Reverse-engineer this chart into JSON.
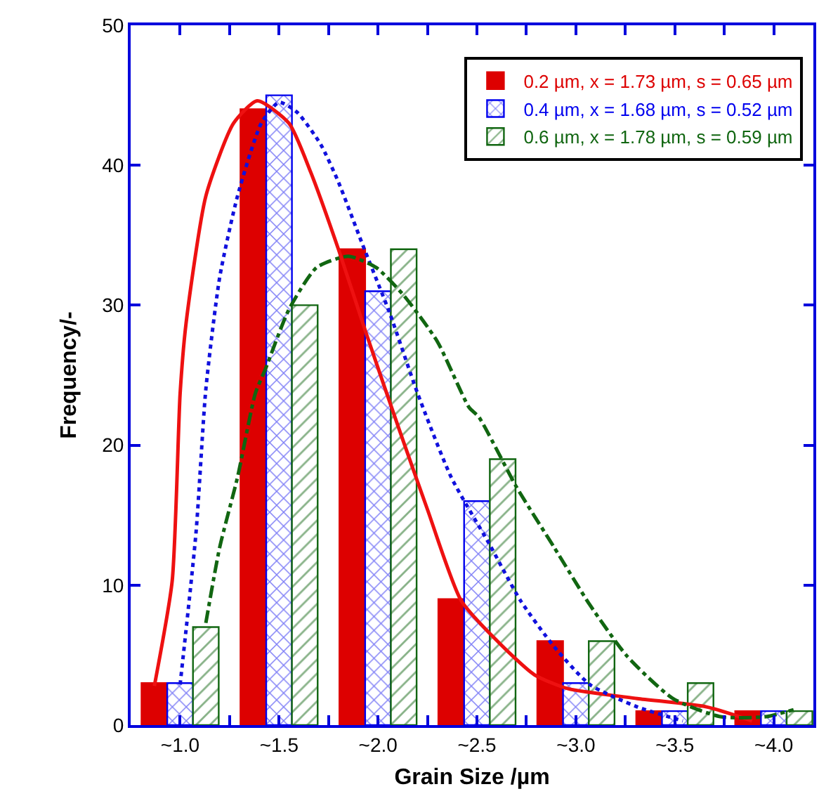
{
  "chart_data": {
    "type": "bar",
    "xlabel": "Grain Size /µm",
    "ylabel": "Frequency/-",
    "x": [
      1.0,
      1.5,
      2.0,
      2.5,
      3.0,
      3.5,
      4.0
    ],
    "xlim": [
      0.75,
      4.2
    ],
    "xticks": [
      {
        "value": 1.0,
        "label": "~1.0"
      },
      {
        "value": 1.25,
        "label": null
      },
      {
        "value": 1.5,
        "label": "~1.5"
      },
      {
        "value": 1.75,
        "label": null
      },
      {
        "value": 2.0,
        "label": "~2.0"
      },
      {
        "value": 2.25,
        "label": null
      },
      {
        "value": 2.5,
        "label": "~2.5"
      },
      {
        "value": 2.75,
        "label": null
      },
      {
        "value": 3.0,
        "label": "~3.0"
      },
      {
        "value": 3.25,
        "label": null
      },
      {
        "value": 3.5,
        "label": "~3.5"
      },
      {
        "value": 3.75,
        "label": null
      },
      {
        "value": 4.0,
        "label": "~4.0"
      }
    ],
    "ylim": [
      0,
      50
    ],
    "yticks": [
      0,
      10,
      20,
      30,
      40,
      50
    ],
    "grid": false,
    "legend": "top right",
    "series": [
      {
        "type": "bar",
        "name": "0.2 µm, x = 1.73 µm, s = 0.65 µm",
        "color": "#dd0000",
        "values": [
          3,
          44,
          34,
          9,
          6,
          1,
          1
        ]
      },
      {
        "type": "bar",
        "name": "0.4 µm, x = 1.68 µm, s = 0.52 µm",
        "color": "#0000ee",
        "values": [
          3,
          45,
          31,
          16,
          3,
          1,
          1
        ]
      },
      {
        "type": "bar",
        "name": "0.6 µm, x = 1.78 µm, s = 0.59 µm",
        "color": "#116611",
        "values": [
          7,
          30,
          34,
          19,
          6,
          3,
          1
        ]
      },
      {
        "type": "line",
        "color": "#ee1111",
        "line_style": "solid",
        "x": [
          0.87,
          0.96,
          1.0,
          1.03,
          1.13,
          1.27,
          1.39,
          1.55,
          1.66,
          1.8,
          1.94,
          2.11,
          2.25,
          2.42,
          2.61,
          2.79,
          2.96,
          3.31,
          3.66,
          3.89
        ],
        "values": [
          2.8,
          10.3,
          23.7,
          28.7,
          37.8,
          43,
          44.6,
          43,
          39.5,
          34,
          28,
          21,
          15.4,
          8.9,
          5.9,
          3.6,
          2.6,
          1.9,
          1.3,
          0.3
        ]
      },
      {
        "type": "line",
        "color": "#1111dd",
        "line_style": "dotted",
        "x": [
          1.0,
          1.08,
          1.13,
          1.2,
          1.29,
          1.41,
          1.5,
          1.59,
          1.71,
          1.8,
          1.92,
          2.06,
          2.2,
          2.37,
          2.56,
          2.72,
          2.89,
          3.07,
          3.31,
          3.54
        ],
        "values": [
          2.9,
          13.7,
          24,
          32,
          37.8,
          43,
          44.5,
          43.8,
          41.5,
          38.8,
          34.4,
          29.4,
          23.7,
          17.7,
          13,
          8.9,
          5.6,
          2.9,
          1.3,
          0.3
        ]
      },
      {
        "type": "line",
        "color": "#116611",
        "line_style": "dashed",
        "x": [
          1.13,
          1.2,
          1.29,
          1.38,
          1.43,
          1.55,
          1.69,
          1.85,
          1.99,
          2.13,
          2.3,
          2.46,
          2.51,
          2.7,
          2.89,
          3.07,
          3.26,
          3.49,
          3.73,
          3.96,
          4.1
        ],
        "values": [
          7.3,
          12.7,
          17.7,
          23.7,
          25.4,
          29.7,
          32.7,
          33.5,
          32.7,
          30.7,
          27.4,
          22.7,
          22,
          17,
          12.7,
          8.6,
          4.9,
          1.9,
          0.6,
          0.6,
          1.1
        ]
      }
    ]
  }
}
